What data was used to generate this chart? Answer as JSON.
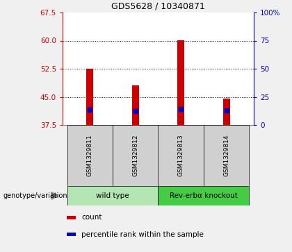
{
  "title": "GDS5628 / 10340871",
  "samples": [
    "GSM1329811",
    "GSM1329812",
    "GSM1329813",
    "GSM1329814"
  ],
  "bar_values": [
    52.5,
    48.0,
    60.0,
    44.5
  ],
  "blue_dot_values": [
    41.5,
    41.2,
    41.8,
    41.3
  ],
  "bar_bottom": 37.5,
  "ylim_left": [
    37.5,
    67.5
  ],
  "ylim_right": [
    0,
    100
  ],
  "yticks_left": [
    37.5,
    45.0,
    52.5,
    60.0,
    67.5
  ],
  "yticks_right": [
    0,
    25,
    50,
    75,
    100
  ],
  "ytick_labels_right": [
    "0",
    "25",
    "50",
    "75",
    "100%"
  ],
  "bar_color": "#cc0000",
  "blue_dot_color": "#0000cc",
  "grid_color": "#000000",
  "groups": [
    {
      "label": "wild type",
      "indices": [
        0,
        1
      ],
      "color": "#b3e6b3"
    },
    {
      "label": "Rev-erbα knockout",
      "indices": [
        2,
        3
      ],
      "color": "#44cc44"
    }
  ],
  "genotype_label": "genotype/variation",
  "legend_items": [
    {
      "color": "#cc0000",
      "label": "count"
    },
    {
      "color": "#0000cc",
      "label": "percentile rank within the sample"
    }
  ],
  "bar_width": 0.15,
  "left_axis_color": "#cc0000",
  "right_axis_color": "#0000cc",
  "plot_bg_color": "#ffffff",
  "sample_area_color": "#d0d0d0",
  "fig_bg_color": "#f0f0f0"
}
